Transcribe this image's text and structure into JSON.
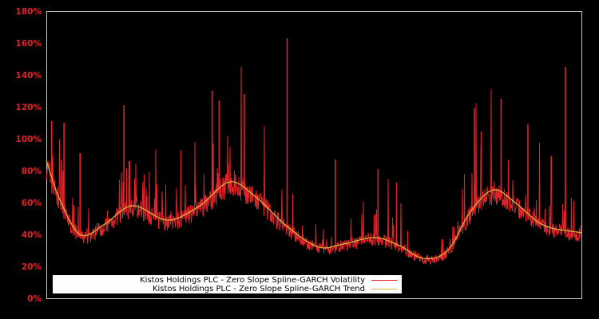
{
  "chart_data": {
    "type": "line",
    "title": "",
    "xlabel": "",
    "ylabel": "",
    "ylim": [
      0,
      180
    ],
    "y_ticks": [
      "0%",
      "20%",
      "40%",
      "60%",
      "80%",
      "100%",
      "120%",
      "140%",
      "160%",
      "180%"
    ],
    "grid": false,
    "legend_position": "lower-left",
    "series": [
      {
        "name": "Kistos Holdings PLC - Zero Slope Spline-GARCH Volatility",
        "color": "#e32229",
        "description": "noisy daily volatility series hugging trend with spikes",
        "notable_spikes": [
          {
            "x_frac": 0.01,
            "value": 111
          },
          {
            "x_frac": 0.033,
            "value": 110
          },
          {
            "x_frac": 0.063,
            "value": 91
          },
          {
            "x_frac": 0.145,
            "value": 121
          },
          {
            "x_frac": 0.31,
            "value": 130
          },
          {
            "x_frac": 0.323,
            "value": 124
          },
          {
            "x_frac": 0.37,
            "value": 128
          },
          {
            "x_frac": 0.45,
            "value": 163
          },
          {
            "x_frac": 0.54,
            "value": 87
          },
          {
            "x_frac": 0.62,
            "value": 81
          },
          {
            "x_frac": 0.8,
            "value": 119
          },
          {
            "x_frac": 0.85,
            "value": 125
          },
          {
            "x_frac": 0.9,
            "value": 109
          },
          {
            "x_frac": 0.97,
            "value": 145
          }
        ]
      },
      {
        "name": "Kistos Holdings PLC - Zero Slope Spline-GARCH Trend",
        "color": "#d9b23a",
        "points_x_frac": [
          0.0,
          0.025,
          0.063,
          0.107,
          0.16,
          0.227,
          0.287,
          0.343,
          0.39,
          0.45,
          0.51,
          0.555,
          0.615,
          0.66,
          0.705,
          0.75,
          0.794,
          0.836,
          0.876,
          0.928,
          1.0
        ],
        "values": [
          86,
          62,
          40,
          46,
          58,
          49,
          58,
          73,
          64,
          45,
          32,
          34,
          38,
          33,
          25,
          30,
          55,
          68,
          60,
          46,
          41
        ]
      }
    ]
  },
  "legend": {
    "volatility_label": "Kistos Holdings PLC - Zero Slope Spline-GARCH Volatility",
    "trend_label": "Kistos Holdings PLC - Zero Slope Spline-GARCH Trend"
  },
  "axis": {
    "ticks": [
      "0%",
      "20%",
      "40%",
      "60%",
      "80%",
      "100%",
      "120%",
      "140%",
      "160%",
      "180%"
    ]
  }
}
